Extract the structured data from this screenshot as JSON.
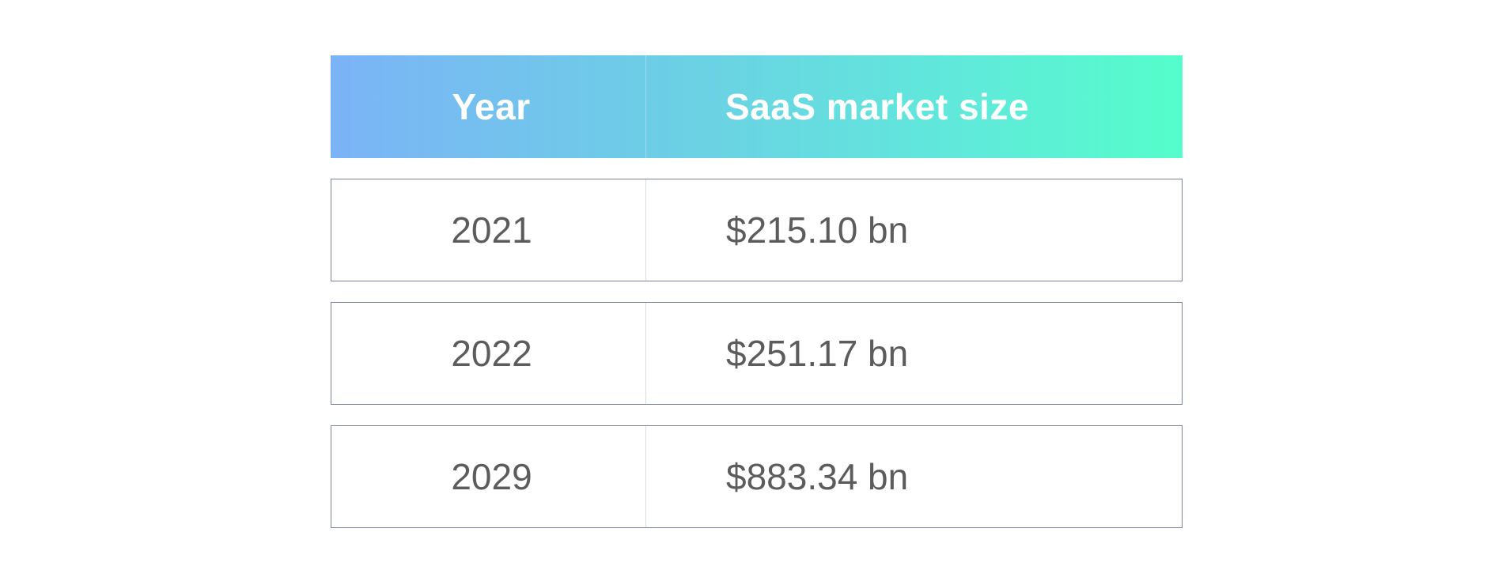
{
  "chart_data": {
    "type": "table",
    "columns": [
      "Year",
      "SaaS market size"
    ],
    "rows": [
      [
        "2021",
        "$215.10 bn"
      ],
      [
        "2022",
        "$251.17 bn"
      ],
      [
        "2029",
        "$883.34 bn"
      ]
    ]
  },
  "colors": {
    "header_gradient_start": "#7bb3f7",
    "header_gradient_end": "#55fdcb",
    "header_text": "#ffffff",
    "cell_text": "#5c5c5c",
    "row_border": "#7a8296"
  }
}
